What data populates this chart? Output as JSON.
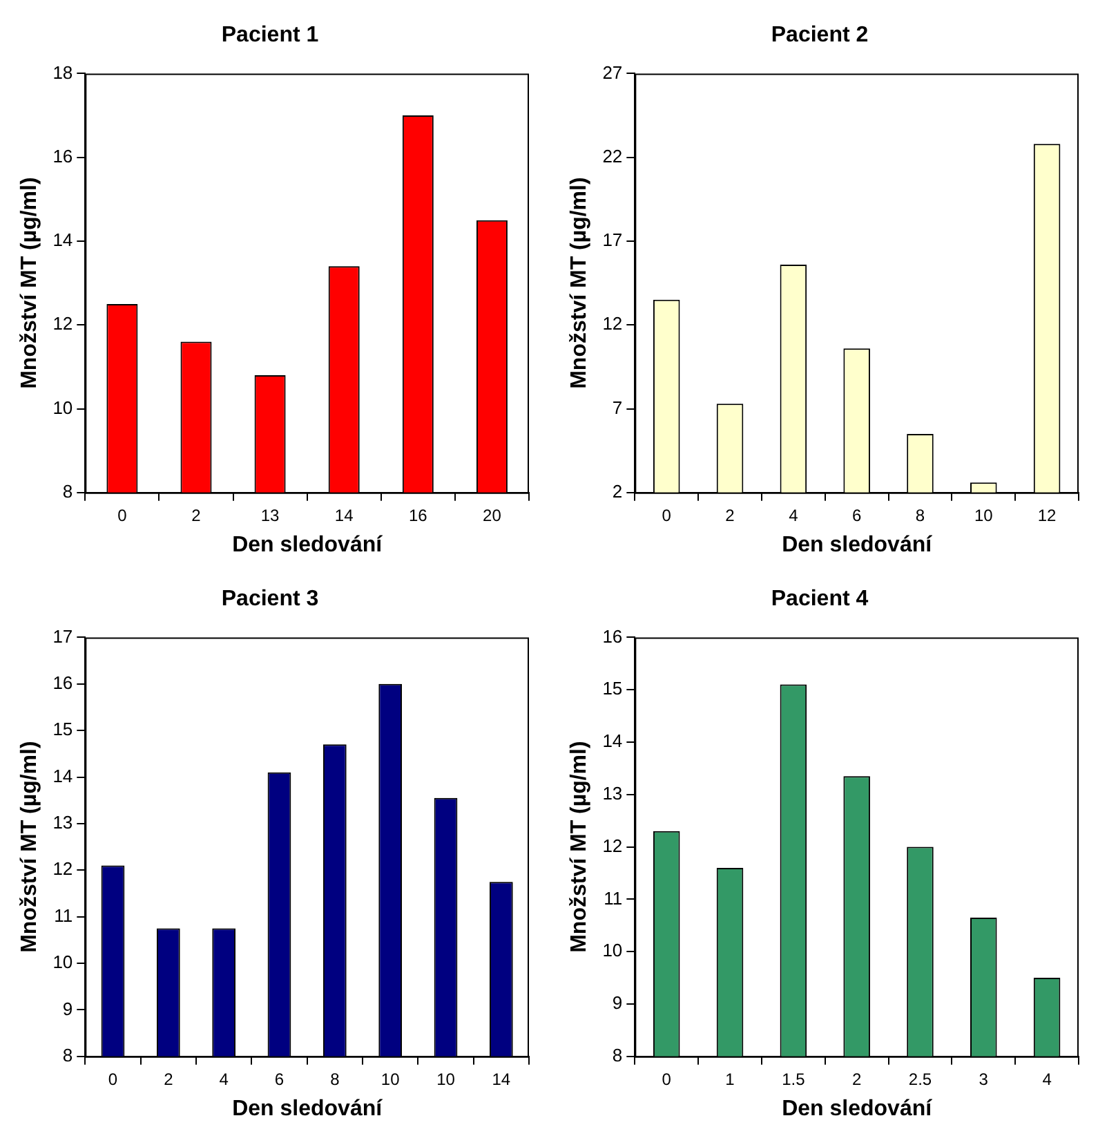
{
  "chart_data": [
    {
      "type": "bar",
      "title": "Pacient 1",
      "xlabel": "Den sledování",
      "ylabel": "Množství MT (µg/ml)",
      "categories": [
        "0",
        "2",
        "13",
        "14",
        "16",
        "20"
      ],
      "values": [
        12.5,
        11.6,
        10.8,
        13.4,
        17.0,
        14.5
      ],
      "color": "#ff0000",
      "ylim": [
        8,
        18
      ],
      "yticks": [
        8,
        10,
        12,
        14,
        16,
        18
      ]
    },
    {
      "type": "bar",
      "title": "Pacient 2",
      "xlabel": "Den sledování",
      "ylabel": "Množství MT (µg/ml)",
      "categories": [
        "0",
        "2",
        "4",
        "6",
        "8",
        "10",
        "12"
      ],
      "values": [
        13.5,
        7.3,
        15.6,
        10.6,
        5.5,
        2.6,
        22.8
      ],
      "color": "#ffffcc",
      "ylim": [
        2,
        27
      ],
      "yticks": [
        2,
        7,
        12,
        17,
        22,
        27
      ]
    },
    {
      "type": "bar",
      "title": "Pacient 3",
      "xlabel": "Den sledování",
      "ylabel": "Množství MT (µg/ml)",
      "categories": [
        "0",
        "2",
        "4",
        "6",
        "8",
        "10",
        "10",
        "14"
      ],
      "values": [
        12.1,
        10.75,
        10.75,
        14.1,
        14.7,
        16.0,
        13.55,
        11.75
      ],
      "color": "#000080",
      "ylim": [
        8,
        17
      ],
      "yticks": [
        8,
        9,
        10,
        11,
        12,
        13,
        14,
        15,
        16,
        17
      ]
    },
    {
      "type": "bar",
      "title": "Pacient 4",
      "xlabel": "Den sledování",
      "ylabel": "Množství MT (µg/ml)",
      "categories": [
        "0",
        "1",
        "1.5",
        "2",
        "2.5",
        "3",
        "4"
      ],
      "values": [
        12.3,
        11.6,
        15.1,
        13.35,
        12.0,
        10.65,
        9.5
      ],
      "color": "#339966",
      "ylim": [
        8,
        16
      ],
      "yticks": [
        8,
        9,
        10,
        11,
        12,
        13,
        14,
        15,
        16
      ]
    }
  ]
}
